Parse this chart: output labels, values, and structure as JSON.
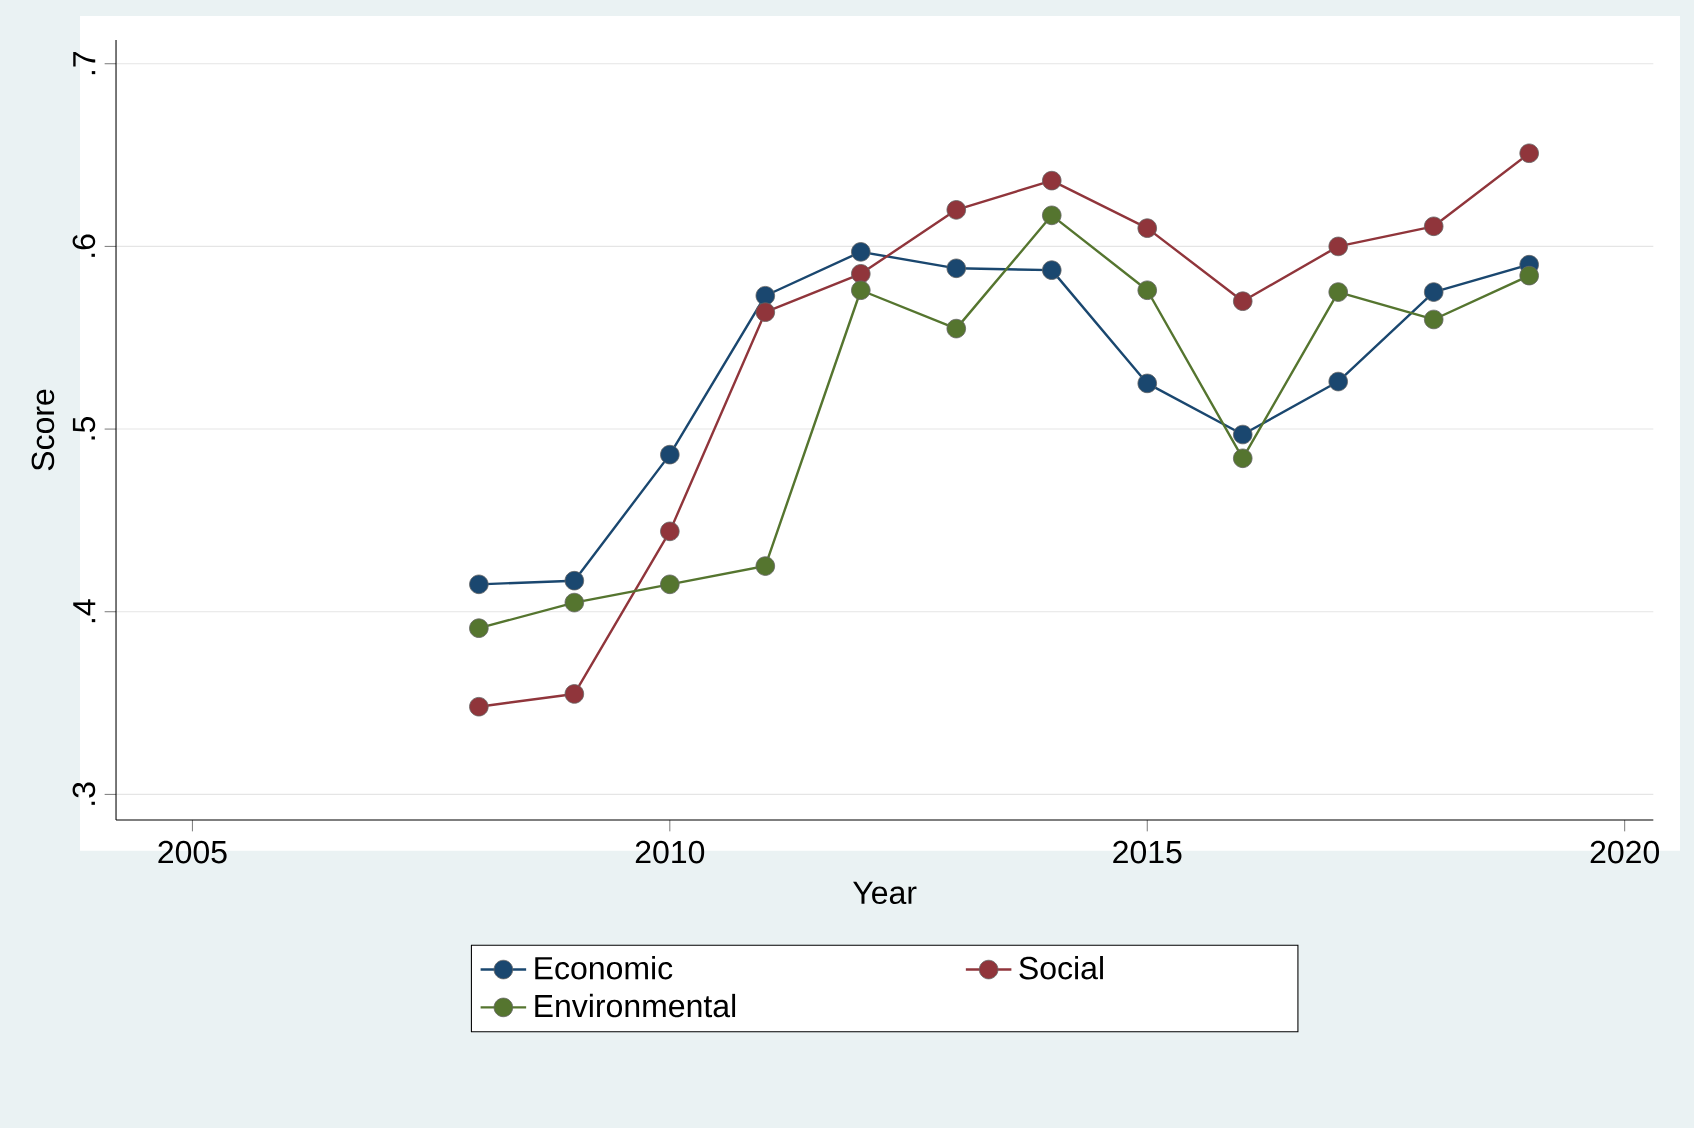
{
  "chart_data": {
    "type": "line",
    "xlabel": "Year",
    "ylabel": "Score",
    "x": [
      2008,
      2009,
      2010,
      2011,
      2012,
      2013,
      2014,
      2015,
      2016,
      2017,
      2018,
      2019
    ],
    "series": [
      {
        "name": "Economic",
        "color": "#1a476f",
        "values": [
          0.415,
          0.417,
          0.486,
          0.573,
          0.597,
          0.588,
          0.587,
          0.525,
          0.497,
          0.526,
          0.575,
          0.59
        ]
      },
      {
        "name": "Social",
        "color": "#90353b",
        "values": [
          0.348,
          0.355,
          0.444,
          0.564,
          0.585,
          0.62,
          0.636,
          0.61,
          0.57,
          0.6,
          0.611,
          0.651
        ]
      },
      {
        "name": "Environmental",
        "color": "#55752f",
        "values": [
          0.391,
          0.405,
          0.415,
          0.425,
          0.576,
          0.555,
          0.617,
          0.576,
          0.484,
          0.575,
          0.56,
          0.584
        ]
      }
    ],
    "xlim": [
      2004.2,
      2020.3
    ],
    "xticks": [
      2005,
      2010,
      2015,
      2020
    ],
    "ylim": [
      0.286,
      0.713
    ],
    "yticks": [
      {
        "value": 0.3,
        "label": ".3"
      },
      {
        "value": 0.4,
        "label": ".4"
      },
      {
        "value": 0.5,
        "label": ".5"
      },
      {
        "value": 0.6,
        "label": ".6"
      },
      {
        "value": 0.7,
        "label": ".7"
      }
    ],
    "grid": "y",
    "legend": "bottom",
    "marker": "circle",
    "line_style": "solid"
  }
}
